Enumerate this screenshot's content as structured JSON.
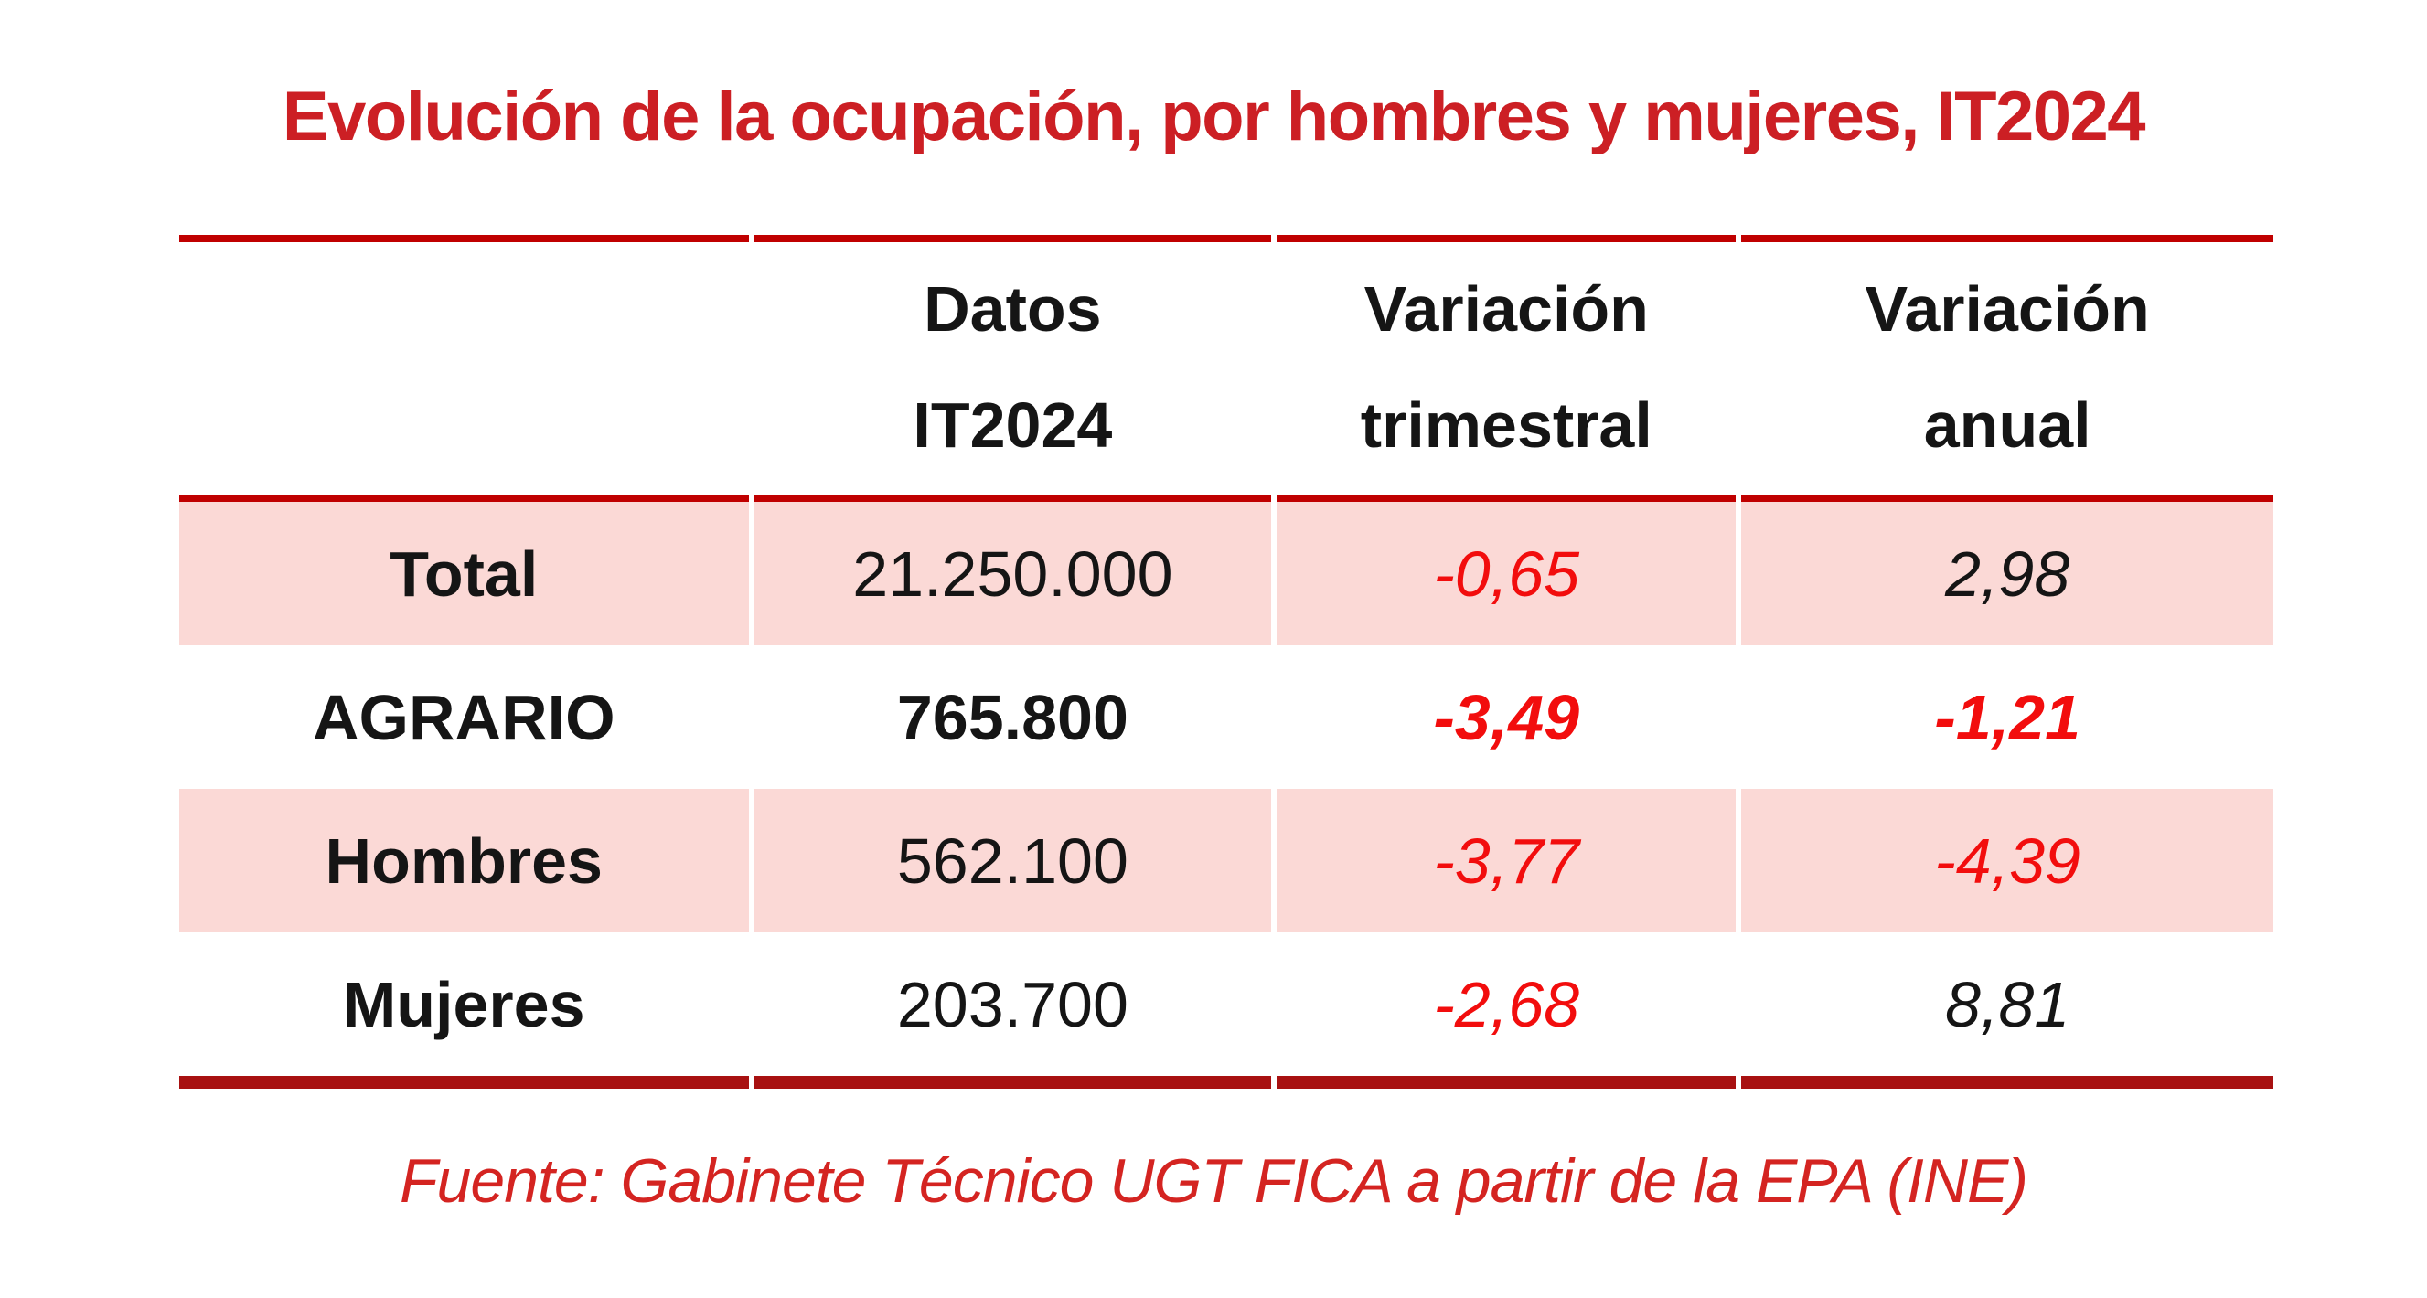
{
  "title": {
    "text": "Evolución de la ocupación, por hombres y mujeres, IT2024"
  },
  "table": {
    "header": [
      {
        "line1": "",
        "line2": ""
      },
      {
        "line1": "Datos",
        "line2": "IT2024"
      },
      {
        "line1": "Variación",
        "line2": "trimestral"
      },
      {
        "line1": "Variación",
        "line2": "anual"
      }
    ],
    "rows": [
      {
        "label": "Total",
        "datos": "21.250.000",
        "variacion_trimestral": "-0,65",
        "variacion_anual": "2,98"
      },
      {
        "label": "AGRARIO",
        "datos": "765.800",
        "variacion_trimestral": "-3,49",
        "variacion_anual": "-1,21"
      },
      {
        "label": "Hombres",
        "datos": "562.100",
        "variacion_trimestral": "-3,77",
        "variacion_anual": "-4,39"
      },
      {
        "label": "Mujeres",
        "datos": "203.700",
        "variacion_trimestral": "-2,68",
        "variacion_anual": "8,81"
      }
    ]
  },
  "source": {
    "text": "Fuente: Gabinete Técnico UGT FICA a partir de la EPA (INE)"
  },
  "theme": {
    "title_red": "#cc1f24",
    "rule_red": "#c00000",
    "rule_bottom_red": "#a81111",
    "row_pink": "#fbd9d6",
    "value_red": "#f20d0d",
    "text_black": "#151515",
    "source_red": "#d42421"
  },
  "chart_data": {
    "type": "table",
    "title": "Evolución de la ocupación, por hombres y mujeres, IT2024",
    "columns": [
      "",
      "Datos IT2024",
      "Variación trimestral",
      "Variación anual"
    ],
    "rows": [
      {
        "categoria": "Total",
        "datos_it2024": 21250000,
        "variacion_trimestral": -0.65,
        "variacion_anual": 2.98
      },
      {
        "categoria": "AGRARIO",
        "datos_it2024": 765800,
        "variacion_trimestral": -3.49,
        "variacion_anual": -1.21
      },
      {
        "categoria": "Hombres",
        "datos_it2024": 562100,
        "variacion_trimestral": -3.77,
        "variacion_anual": -4.39
      },
      {
        "categoria": "Mujeres",
        "datos_it2024": 203700,
        "variacion_trimestral": -2.68,
        "variacion_anual": 8.81
      }
    ],
    "notes": {
      "shaded_rows": [
        "Total",
        "Hombres"
      ],
      "bold_row": "AGRARIO",
      "negative_values_color": "#f20d0d"
    },
    "source": "Fuente: Gabinete Técnico UGT FICA a partir de la EPA (INE)"
  }
}
